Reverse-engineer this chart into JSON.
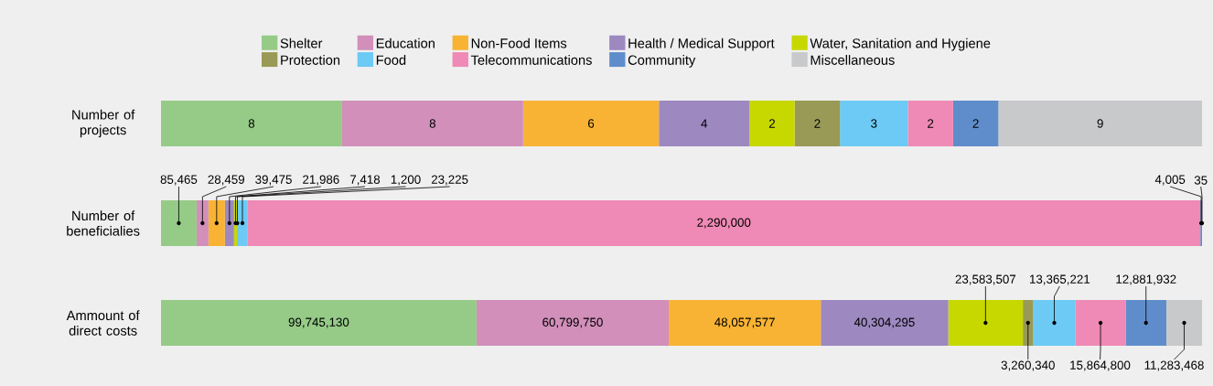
{
  "chart_data": [
    {
      "type": "bar",
      "orientation": "horizontal",
      "stacked": true,
      "legend": "top",
      "tick_labels": "y",
      "categories": [
        "Number of projects"
      ],
      "series": [
        {
          "name": "Shelter",
          "color": "#95cb86",
          "values": [
            8
          ],
          "value_labels": [
            "8"
          ]
        },
        {
          "name": "Education",
          "color": "#d18fba",
          "values": [
            8
          ],
          "value_labels": [
            "8"
          ]
        },
        {
          "name": "Non-Food Items",
          "color": "#f8b334",
          "values": [
            6
          ],
          "value_labels": [
            "6"
          ]
        },
        {
          "name": "Health / Medical Support",
          "color": "#9d88c0",
          "values": [
            4
          ],
          "value_labels": [
            "4"
          ]
        },
        {
          "name": "Water, Sanitation and Hygiene",
          "color": "#c6d800",
          "values": [
            2
          ],
          "value_labels": [
            "2"
          ]
        },
        {
          "name": "Protection",
          "color": "#999a55",
          "values": [
            2
          ],
          "value_labels": [
            "2"
          ]
        },
        {
          "name": "Food",
          "color": "#6ccaf4",
          "values": [
            3
          ],
          "value_labels": [
            "3"
          ]
        },
        {
          "name": "Telecommunications",
          "color": "#ef89b5",
          "values": [
            2
          ],
          "value_labels": [
            "2"
          ]
        },
        {
          "name": "Community",
          "color": "#5f8dcb",
          "values": [
            2
          ],
          "value_labels": [
            "2"
          ]
        },
        {
          "name": "Miscellaneous",
          "color": "#c8c9cb",
          "values": [
            9
          ],
          "value_labels": [
            "9"
          ]
        }
      ]
    },
    {
      "type": "bar",
      "orientation": "horizontal",
      "stacked": true,
      "categories": [
        "Number of beneficialies"
      ],
      "tick_labels": "y",
      "series": [
        {
          "color": "#95cb86",
          "values": [
            85465
          ],
          "value_labels": [
            "85,465"
          ]
        },
        {
          "color": "#d18fba",
          "values": [
            28459
          ],
          "value_labels": [
            "28,459"
          ]
        },
        {
          "color": "#f8b334",
          "values": [
            39475
          ],
          "value_labels": [
            "39,475"
          ]
        },
        {
          "color": "#9d88c0",
          "values": [
            21986
          ],
          "value_labels": [
            "21,986"
          ]
        },
        {
          "color": "#c6d800",
          "values": [
            7418
          ],
          "value_labels": [
            "7,418"
          ]
        },
        {
          "color": "#999a55",
          "values": [
            1200
          ],
          "value_labels": [
            "1,200"
          ]
        },
        {
          "color": "#6ccaf4",
          "values": [
            23225
          ],
          "value_labels": [
            "23,225"
          ]
        },
        {
          "color": "#ef89b5",
          "values": [
            2290000
          ],
          "value_labels": [
            "2,290,000"
          ]
        },
        {
          "color": "#5f8dcb",
          "values": [
            4005
          ],
          "value_labels": [
            "4,005"
          ]
        },
        {
          "color": "#c8c9cb",
          "values": [
            35
          ],
          "value_labels": [
            "35"
          ]
        }
      ]
    },
    {
      "type": "bar",
      "orientation": "horizontal",
      "stacked": true,
      "tick_labels": "y",
      "categories": [
        "Ammount of direct costs"
      ],
      "series": [
        {
          "color": "#95cb86",
          "values": [
            99745130
          ],
          "value_labels": [
            "99,745,130"
          ]
        },
        {
          "color": "#d18fba",
          "values": [
            60799750
          ],
          "value_labels": [
            "60,799,750"
          ]
        },
        {
          "color": "#f8b334",
          "values": [
            48057577
          ],
          "value_labels": [
            "48,057,577"
          ]
        },
        {
          "color": "#9d88c0",
          "values": [
            40304295
          ],
          "value_labels": [
            "40,304,295"
          ]
        },
        {
          "color": "#c6d800",
          "values": [
            23583507
          ],
          "value_labels": [
            "23,583,507"
          ]
        },
        {
          "color": "#999a55",
          "values": [
            3260340
          ],
          "value_labels": [
            "3,260,340"
          ]
        },
        {
          "color": "#6ccaf4",
          "values": [
            13365221
          ],
          "value_labels": [
            "13,365,221"
          ]
        },
        {
          "color": "#ef89b5",
          "values": [
            15864800
          ],
          "value_labels": [
            "15,864,800"
          ]
        },
        {
          "color": "#5f8dcb",
          "values": [
            12881932
          ],
          "value_labels": [
            "12,881,932"
          ]
        },
        {
          "color": "#c8c9cb",
          "values": [
            11283468
          ],
          "value_labels": [
            "11,283,468"
          ]
        }
      ]
    }
  ]
}
